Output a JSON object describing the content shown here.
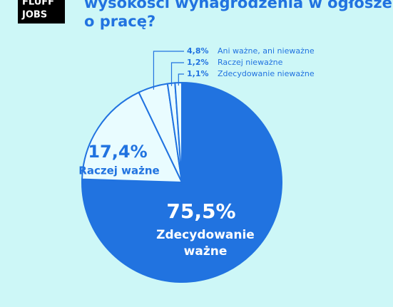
{
  "logo": {
    "lines": [
      "FLUFF",
      "JOBS"
    ]
  },
  "chart_data": {
    "type": "pie",
    "title_lines": [
      "wysokości wynagrodzenia w ogłoszeniu",
      "o pracę?"
    ],
    "categories": [
      "Zdecydowanie ważne",
      "Raczej ważne",
      "Ani ważne, ani nieważne",
      "Raczej nieważne",
      "Zdecydowanie nieważne"
    ],
    "values": [
      75.5,
      17.4,
      4.8,
      1.2,
      1.1
    ],
    "value_labels": [
      "75,5%",
      "17,4%",
      "4,8%",
      "1,2%",
      "1,1%"
    ],
    "colors": [
      "#2173e0",
      "#e9fcff",
      "#e9fcff",
      "#e9fcff",
      "#e9fcff"
    ]
  }
}
